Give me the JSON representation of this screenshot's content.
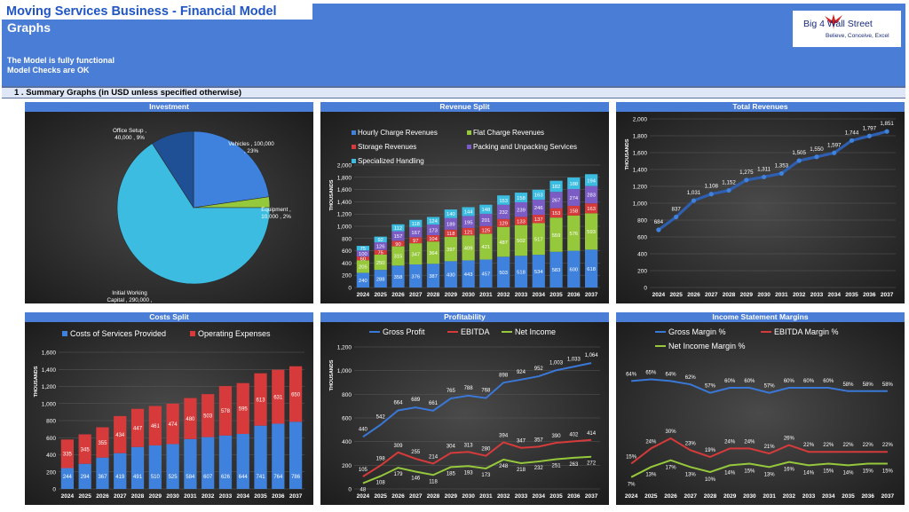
{
  "header": {
    "title": "Moving Services Business - Financial Model",
    "subtitle": "Graphs",
    "status_line1": "The Model is fully functional",
    "status_line2": "Model Checks are OK",
    "logo_text": "Big 4 Wall Street",
    "logo_tagline": "Believe, Conceive, Excel"
  },
  "section": {
    "title": "1 .  Summary Graphs (in USD unless specified otherwise)"
  },
  "panels": {
    "investment": "Investment",
    "revenue": "Revenue Split",
    "total": "Total Revenues",
    "costs": "Costs Split",
    "profit": "Profitability",
    "margins": "Income Statement Margins"
  },
  "colors": {
    "header": "#4a7dd6",
    "blue": "#3f82de",
    "green": "#96c83c",
    "red": "#d63a3a",
    "purple": "#7a5cc4",
    "cyan": "#3cbce0",
    "teal": "#2cb2d2"
  },
  "chart_data": [
    {
      "type": "pie",
      "slices": [
        {
          "name": "Vehicles",
          "value": 100000,
          "pct": "23%",
          "label": "Vehicles , 100,000\n, 23%",
          "color": "#3f82de"
        },
        {
          "name": "Equipment",
          "value": 10000,
          "pct": "2%",
          "label": "Equipment ,\n10,000 , 2%",
          "color": "#96c83c"
        },
        {
          "name": "Initial Working Capital",
          "value": 290000,
          "pct": "66%",
          "label": "Initial Working\nCapital , 290,000 ,\n66%",
          "color": "#3cbce0"
        },
        {
          "name": "Office Setup",
          "value": 40000,
          "pct": "9%",
          "label": "Office Setup ,\n40,000 , 9%",
          "color": "#1f4f94"
        }
      ]
    },
    {
      "type": "bar",
      "ylabel": "THOUSANDS",
      "categories": [
        "2024",
        "2025",
        "2026",
        "2027",
        "2028",
        "2029",
        "2030",
        "2031",
        "2032",
        "2033",
        "2034",
        "2035",
        "2036",
        "2037"
      ],
      "yticks": [
        "0",
        "200",
        "400",
        "600",
        "800",
        "1,000",
        "1,200",
        "1,400",
        "1,600",
        "1,800",
        "2,000"
      ],
      "ylim": [
        0,
        2000
      ],
      "series": [
        {
          "name": "Hourly Charge Revenues",
          "values": [
            240,
            288,
            358,
            376,
            387,
            430,
            443,
            457,
            503,
            518,
            534,
            583,
            600,
            618
          ]
        },
        {
          "name": "Flat Charge Revenues",
          "values": [
            205,
            250,
            315,
            347,
            364,
            397,
            409,
            421,
            487,
            502,
            517,
            559,
            576,
            593
          ]
        },
        {
          "name": "Storage Revenues",
          "values": [
            60,
            75,
            90,
            97,
            104,
            118,
            121,
            125,
            129,
            133,
            137,
            153,
            158,
            163
          ]
        },
        {
          "name": "Packing and Unpacking Services",
          "values": [
            100,
            126,
            157,
            167,
            173,
            189,
            195,
            201,
            232,
            239,
            246,
            267,
            274,
            283
          ]
        },
        {
          "name": "Specialized Handling",
          "values": [
            75,
            92,
            112,
            118,
            124,
            140,
            144,
            148,
            153,
            158,
            163,
            182,
            188,
            194
          ]
        }
      ]
    },
    {
      "type": "line",
      "ylabel": "THOUSANDS",
      "categories": [
        "2024",
        "2025",
        "2026",
        "2027",
        "2028",
        "2029",
        "2030",
        "2031",
        "2032",
        "2033",
        "2034",
        "2035",
        "2036",
        "2037"
      ],
      "yticks": [
        "0",
        "200",
        "400",
        "600",
        "800",
        "1,000",
        "1,200",
        "1,400",
        "1,600",
        "1,800",
        "2,000"
      ],
      "ylim": [
        0,
        2000
      ],
      "series": [
        {
          "name": "Total Revenues",
          "values": [
            684,
            837,
            1031,
            1108,
            1152,
            1275,
            1311,
            1353,
            1505,
            1550,
            1597,
            1744,
            1797,
            1851
          ],
          "labels": [
            "684",
            "837",
            "1,031",
            "1,108",
            "1,152",
            "1,275",
            "1,311",
            "1,353",
            "1,505",
            "1,550",
            "1,597",
            "1,744",
            "1,797",
            "1,851"
          ]
        }
      ]
    },
    {
      "type": "bar",
      "ylabel": "THOUSANDS",
      "categories": [
        "2024",
        "2025",
        "2026",
        "2027",
        "2028",
        "2029",
        "2030",
        "2031",
        "2032",
        "2033",
        "2034",
        "2035",
        "2036",
        "2037"
      ],
      "yticks": [
        "0",
        "200",
        "400",
        "600",
        "800",
        "1,000",
        "1,200",
        "1,400",
        "1,600"
      ],
      "ylim": [
        0,
        1600
      ],
      "series": [
        {
          "name": "Costs of Services Provided",
          "values": [
            244,
            294,
            367,
            419,
            491,
            510,
            525,
            584,
            607,
            626,
            644,
            741,
            764,
            786
          ]
        },
        {
          "name": "Operating Expenses",
          "values": [
            335,
            345,
            355,
            434,
            447,
            461,
            474,
            480,
            503,
            578,
            595,
            613,
            631,
            650
          ]
        }
      ]
    },
    {
      "type": "line",
      "ylabel": "THOUSANDS",
      "categories": [
        "2024",
        "2025",
        "2026",
        "2027",
        "2028",
        "2029",
        "2030",
        "2031",
        "2032",
        "2033",
        "2034",
        "2035",
        "2036",
        "2037"
      ],
      "yticks": [
        "0",
        "200",
        "400",
        "600",
        "800",
        "1,000",
        "1,200"
      ],
      "ylim": [
        0,
        1200
      ],
      "series": [
        {
          "name": "Gross Profit",
          "values": [
            440,
            542,
            664,
            689,
            661,
            765,
            788,
            768,
            898,
            924,
            952,
            1003,
            1033,
            1064
          ]
        },
        {
          "name": "EBITDA",
          "values": [
            105,
            198,
            309,
            255,
            214,
            304,
            313,
            280,
            394,
            347,
            357,
            390,
            402,
            414
          ]
        },
        {
          "name": "Net Income",
          "values": [
            48,
            108,
            179,
            146,
            118,
            185,
            193,
            173,
            248,
            218,
            232,
            251,
            263,
            272
          ]
        }
      ]
    },
    {
      "type": "line",
      "categories": [
        "2024",
        "2025",
        "2026",
        "2027",
        "2028",
        "2029",
        "2030",
        "2031",
        "2032",
        "2033",
        "2034",
        "2035",
        "2036",
        "2037"
      ],
      "series": [
        {
          "name": "Gross Margin %",
          "values": [
            64,
            65,
            64,
            62,
            57,
            60,
            60,
            57,
            60,
            60,
            60,
            58,
            58,
            58
          ]
        },
        {
          "name": "EBITDA Margin %",
          "values": [
            15,
            24,
            30,
            23,
            19,
            24,
            24,
            21,
            26,
            22,
            22,
            22,
            22,
            22
          ]
        },
        {
          "name": "Net Income Margin %",
          "values": [
            7,
            13,
            17,
            13,
            10,
            14,
            15,
            13,
            16,
            14,
            15,
            14,
            15,
            15
          ]
        }
      ]
    }
  ]
}
